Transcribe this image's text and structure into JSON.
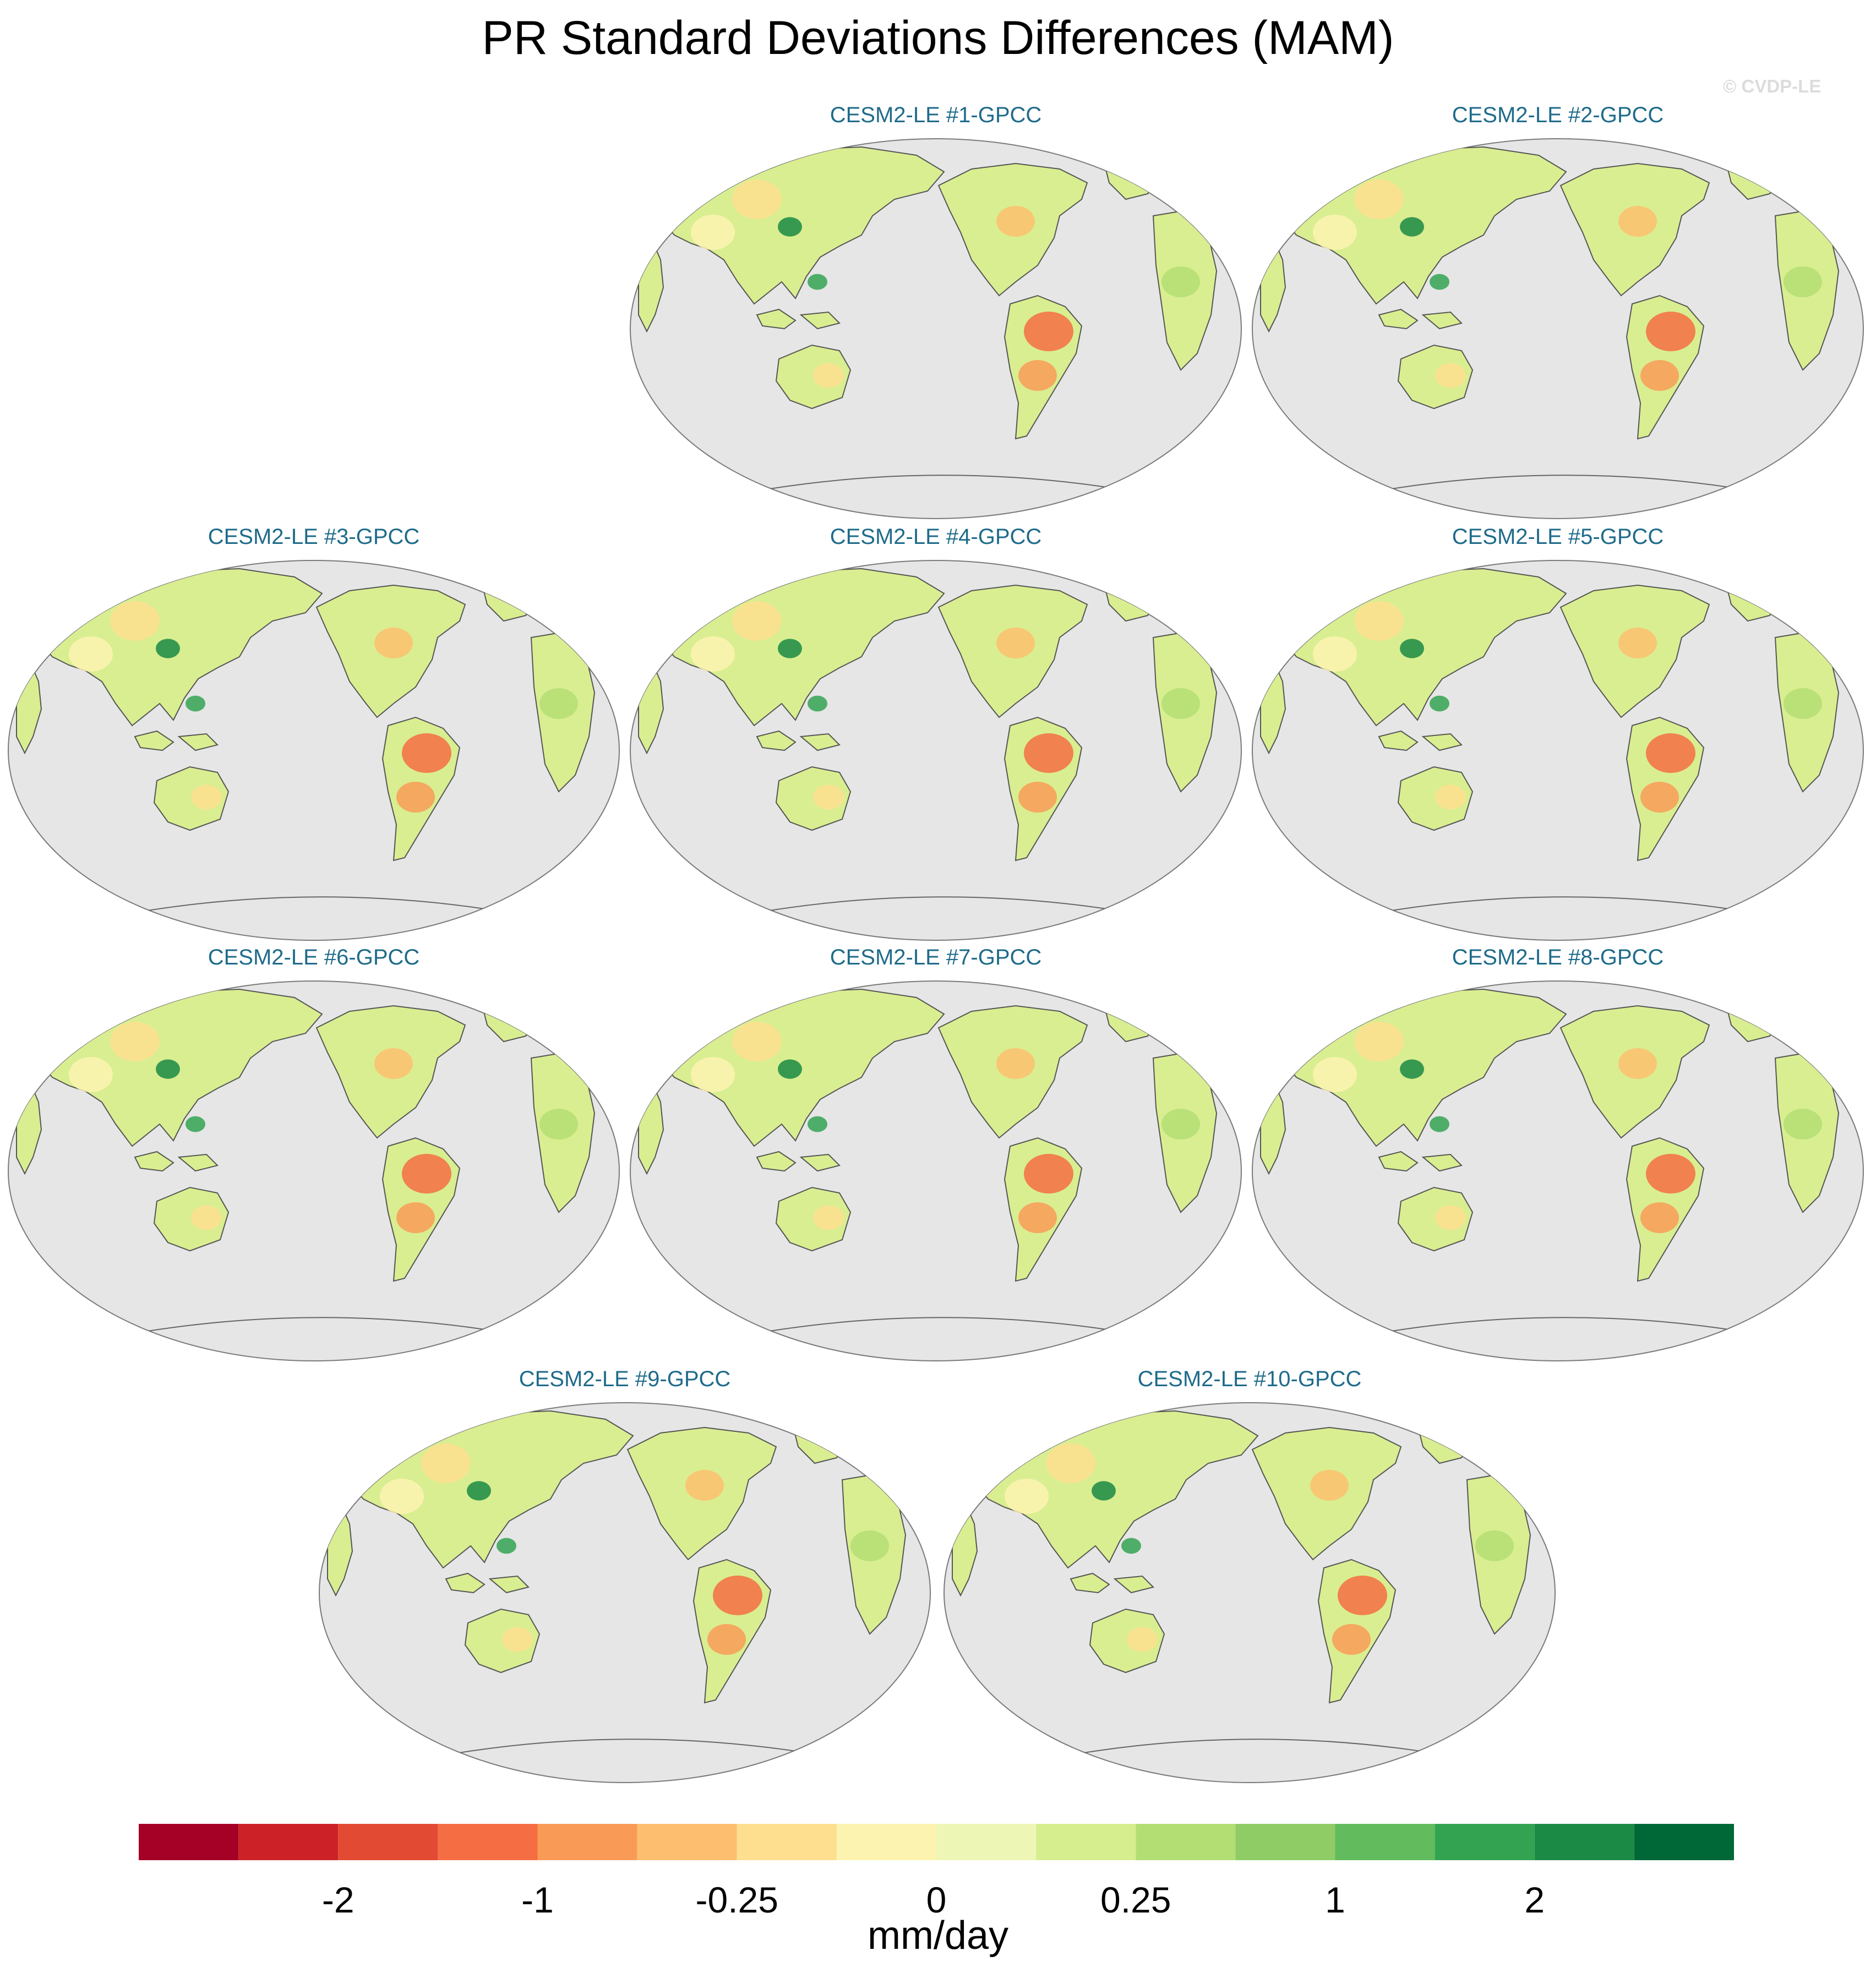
{
  "figure": {
    "title": "PR Standard Deviations Differences (MAM)",
    "watermark": "© CVDP-LE"
  },
  "panels": [
    {
      "label": "CESM2-LE #1-GPCC"
    },
    {
      "label": "CESM2-LE #2-GPCC"
    },
    {
      "label": "CESM2-LE #3-GPCC"
    },
    {
      "label": "CESM2-LE #4-GPCC"
    },
    {
      "label": "CESM2-LE #5-GPCC"
    },
    {
      "label": "CESM2-LE #6-GPCC"
    },
    {
      "label": "CESM2-LE #7-GPCC"
    },
    {
      "label": "CESM2-LE #8-GPCC"
    },
    {
      "label": "CESM2-LE #9-GPCC"
    },
    {
      "label": "CESM2-LE #10-GPCC"
    }
  ],
  "colorbar": {
    "unit": "mm/day",
    "colors": [
      "#a50026",
      "#cb2127",
      "#e34a33",
      "#f46d43",
      "#f99b57",
      "#fdbf6f",
      "#fddf8f",
      "#fdf3b0",
      "#eef6b5",
      "#d6ee8e",
      "#b3de73",
      "#8fcc66",
      "#62bb5d",
      "#33a352",
      "#1a8a44",
      "#006837"
    ],
    "tick_labels": [
      "-2",
      "-1",
      "-0.25",
      "0",
      "0.25",
      "1",
      "2"
    ],
    "tick_boundaries": [
      2,
      4,
      6,
      8,
      10,
      12,
      14
    ]
  },
  "map_colors": {
    "ocean": "#e6e6e6",
    "land_base": "#d9ee91",
    "coast": "#555555"
  }
}
